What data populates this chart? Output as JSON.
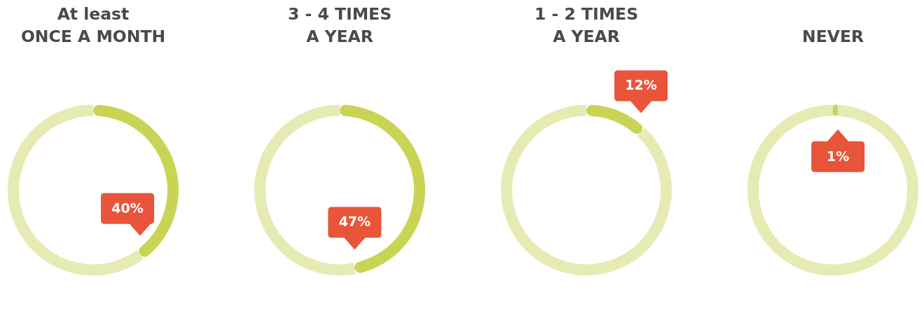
{
  "chart_data": [
    {
      "type": "donut",
      "title": "At least\nONCE A MONTH",
      "categories": [
        null,
        null
      ],
      "values": [
        40,
        60
      ],
      "colors": [
        "#c9d455",
        "#e5ebb3"
      ],
      "value_labels": [
        "40%",
        null
      ]
    },
    {
      "type": "donut",
      "title": "3 - 4 TIMES\nA YEAR",
      "categories": [
        null,
        null
      ],
      "values": [
        47,
        53
      ],
      "colors": [
        "#c9d455",
        "#e5ebb3"
      ],
      "value_labels": [
        "47%",
        null
      ]
    },
    {
      "type": "donut",
      "title": "1 - 2 TIMES\nA YEAR",
      "categories": [
        null,
        null
      ],
      "values": [
        12,
        88
      ],
      "colors": [
        "#c9d455",
        "#e5ebb3"
      ],
      "value_labels": [
        "12%",
        null
      ]
    },
    {
      "type": "donut",
      "title": "NEVER",
      "categories": [
        null,
        null
      ],
      "values": [
        1,
        99
      ],
      "colors": [
        "#c9d455",
        "#e5ebb3"
      ],
      "value_labels": [
        "1%",
        null
      ]
    }
  ]
}
